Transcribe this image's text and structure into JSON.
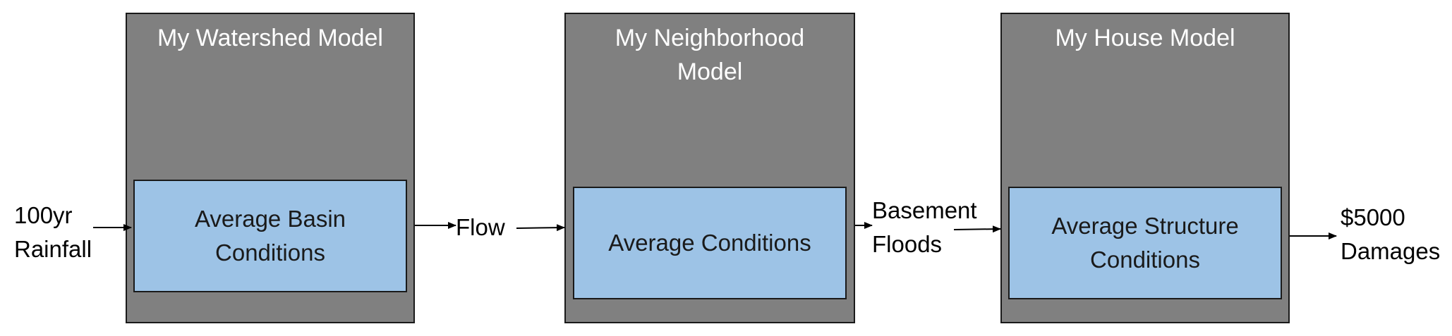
{
  "models": [
    {
      "title": "My Watershed Model",
      "inner": "Average Basin\nConditions"
    },
    {
      "title": "My Neighborhood\nModel",
      "inner": "Average Conditions"
    },
    {
      "title": "My House Model",
      "inner": "Average Structure\nConditions"
    }
  ],
  "labels": {
    "input": "100yr\nRainfall",
    "flow": "Flow",
    "basement": "Basement\nFloods",
    "output": "$5000\nDamages"
  },
  "colors": {
    "model_fill": "#808080",
    "inner_fill": "#9dc3e6",
    "border": "#1a1a1a"
  }
}
